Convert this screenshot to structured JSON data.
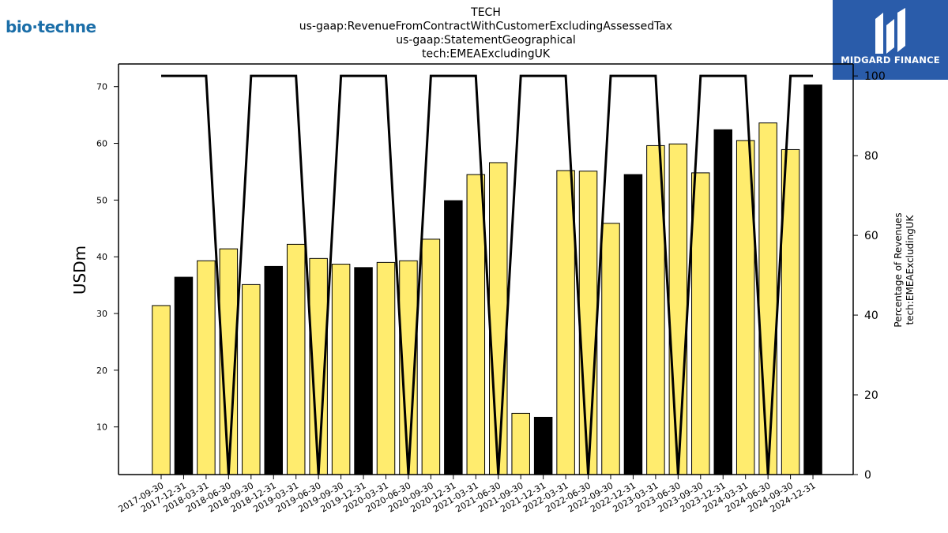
{
  "logos": {
    "left_text": "bio·techne",
    "right_text": "MIDGARD FINANCE",
    "right_bg": "#2a5caa"
  },
  "chart_data": {
    "type": "bar",
    "title": [
      "TECH",
      "us-gaap:RevenueFromContractWithCustomerExcludingAssessedTax",
      "us-gaap:StatementGeographical",
      "tech:EMEAExcludingUK"
    ],
    "ylabel": "USDm",
    "ylabel_right": [
      "Percentage of Revenues",
      "tech:EMEAExcludingUK"
    ],
    "categories": [
      "2017-09-30",
      "2017-12-31",
      "2018-03-31",
      "2018-06-30",
      "2018-09-30",
      "2018-12-31",
      "2019-03-31",
      "2019-06-30",
      "2019-09-30",
      "2019-12-31",
      "2020-03-31",
      "2020-06-30",
      "2020-09-30",
      "2020-12-31",
      "2021-03-31",
      "2021-06-30",
      "2021-09-30",
      "2021-12-31",
      "2022-03-31",
      "2022-06-30",
      "2022-09-30",
      "2022-12-31",
      "2023-03-31",
      "2023-06-30",
      "2023-09-30",
      "2023-12-31",
      "2024-03-31",
      "2024-06-30",
      "2024-09-30",
      "2024-12-31"
    ],
    "values": [
      31.4,
      36.4,
      39.3,
      41.4,
      35.1,
      38.3,
      42.2,
      39.7,
      38.7,
      38.1,
      39.0,
      39.3,
      43.1,
      49.9,
      54.5,
      56.6,
      12.4,
      11.7,
      55.2,
      55.1,
      45.9,
      54.5,
      59.6,
      59.9,
      54.8,
      62.4,
      60.5,
      63.6,
      58.9,
      70.3
    ],
    "highlight": [
      false,
      true,
      false,
      false,
      false,
      true,
      false,
      false,
      false,
      true,
      false,
      false,
      false,
      true,
      false,
      false,
      false,
      true,
      false,
      false,
      false,
      true,
      false,
      false,
      false,
      true,
      false,
      false,
      false,
      true
    ],
    "percentage_line": [
      100,
      100,
      100,
      0,
      100,
      100,
      100,
      0,
      100,
      100,
      100,
      0,
      100,
      100,
      100,
      0,
      100,
      100,
      100,
      0,
      100,
      100,
      100,
      0,
      100,
      100,
      100,
      0,
      100,
      100
    ],
    "ylim": [
      1.6,
      74
    ],
    "yticks": [
      10,
      20,
      30,
      40,
      50,
      60,
      70
    ],
    "y2lim": [
      0,
      103
    ],
    "y2ticks": [
      0,
      20,
      40,
      60,
      80,
      100
    ],
    "colors": {
      "bar": "#ffec6e",
      "bar_highlight": "#000000",
      "line": "#000000"
    },
    "grid": false
  }
}
